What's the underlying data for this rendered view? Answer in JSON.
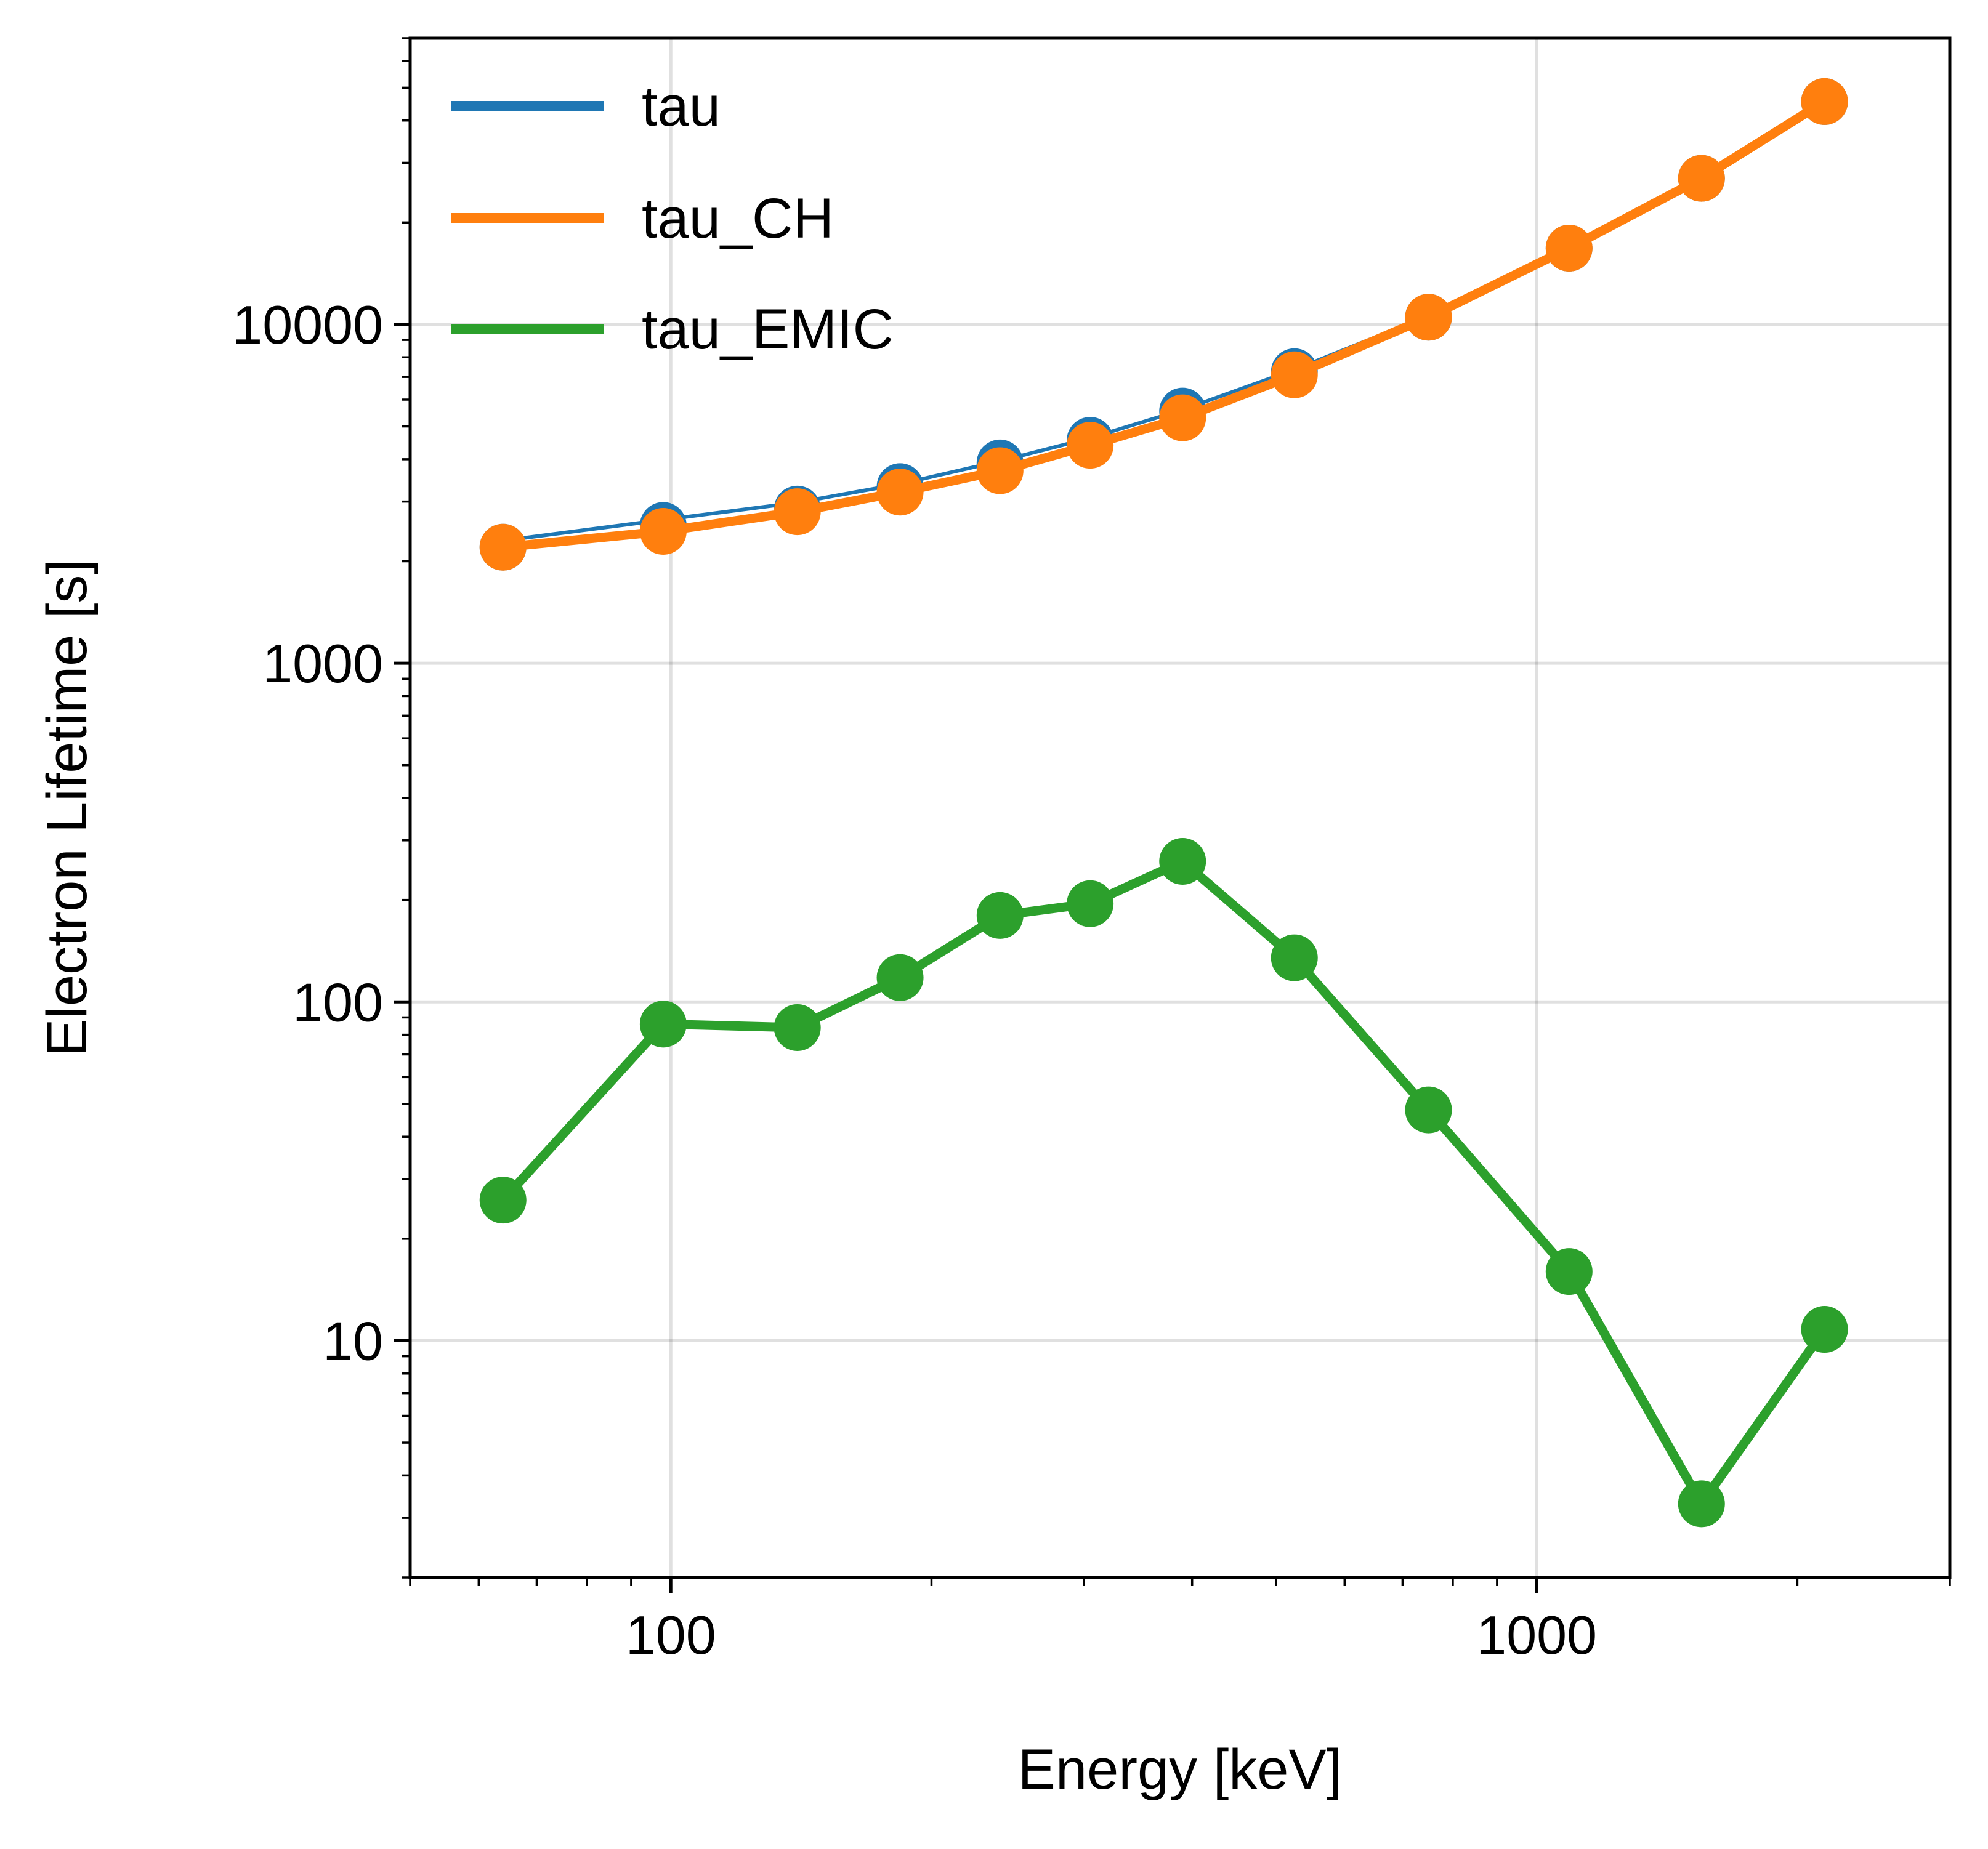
{
  "chart_data": {
    "type": "line",
    "xlabel": "Energy [keV]",
    "ylabel": "Electron Lifetime [s]",
    "xscale": "log",
    "yscale": "log",
    "xlim": [
      50,
      3000
    ],
    "ylim": [
      2,
      70000
    ],
    "grid": true,
    "legend_position": "top-left",
    "x_ticks": [
      {
        "value": 100,
        "label": "100"
      },
      {
        "value": 1000,
        "label": "1000"
      }
    ],
    "y_ticks": [
      {
        "value": 10,
        "label": "10"
      },
      {
        "value": 100,
        "label": "100"
      },
      {
        "value": 1000,
        "label": "1000"
      },
      {
        "value": 10000,
        "label": "10000"
      }
    ],
    "x": [
      64,
      98,
      140,
      184,
      240,
      305,
      390,
      525,
      750,
      1090,
      1550,
      2150
    ],
    "series": [
      {
        "name": "tau",
        "color": "#1f77b4",
        "line": "fit",
        "markers": true,
        "values": [
          2200,
          2550,
          2850,
          3320,
          3900,
          4550,
          5550,
          7250,
          10500,
          16800,
          27000,
          45500
        ],
        "fit_values": [
          2300,
          2650,
          2980,
          3380,
          3950,
          4620,
          5600,
          7350,
          10600,
          16900,
          27000,
          45500
        ]
      },
      {
        "name": "tau_CH",
        "color": "#ff7f0e",
        "line": "connected",
        "markers": true,
        "values": [
          2200,
          2450,
          2800,
          3200,
          3700,
          4400,
          5300,
          7100,
          10500,
          16800,
          27000,
          45500
        ]
      },
      {
        "name": "tau_EMIC",
        "color": "#2ca02c",
        "line": "connected",
        "markers": true,
        "values": [
          26,
          86,
          84,
          118,
          180,
          195,
          260,
          135,
          48,
          16,
          3.3,
          10.8
        ]
      }
    ]
  }
}
